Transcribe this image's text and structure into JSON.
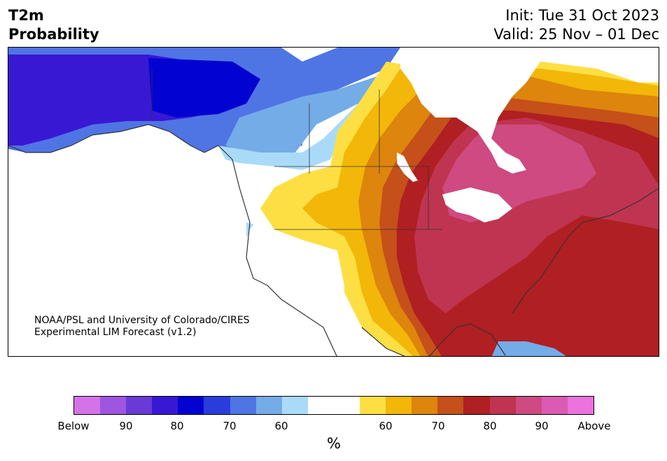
{
  "title": {
    "variable": "T2m",
    "subtitle": "Probability",
    "init": "Init: Tue 31 Oct 2023",
    "valid": "Valid: 25 Nov – 01 Dec"
  },
  "credit": {
    "line1": "NOAA/PSL and University of Colorado/CIRES",
    "line2": "Experimental LIM Forecast (v1.2)"
  },
  "colorbar": {
    "colors": [
      "#d473e8",
      "#9e55e0",
      "#6a3ad6",
      "#3918d4",
      "#0303d1",
      "#2a3ddb",
      "#4f74e4",
      "#74ace8",
      "#a9dbf9",
      "#ffffff",
      "#ffffff",
      "#fddf44",
      "#f2b708",
      "#dd850c",
      "#c5501a",
      "#b01f22",
      "#bf3450",
      "#ce4a80",
      "#db5ab2",
      "#ec72de"
    ],
    "labels": [
      "Below",
      "90",
      "80",
      "70",
      "60",
      "60",
      "70",
      "80",
      "90",
      "Above"
    ],
    "unit": "%"
  },
  "regions": {
    "alaska_core": "#3918d4",
    "yukon_blue": "#0303d1",
    "nw_canada_blue": "#2a3ddb",
    "bc_blue": "#4f74e4",
    "bc_lightblue": "#74ace8",
    "pale_blue": "#a9dbf9",
    "plains_yellow": "#fddf44",
    "plains_gold": "#f2b708",
    "orange": "#dd850c",
    "dark_orange": "#c5501a",
    "dark_red": "#b01f22",
    "crimson": "#bf3450",
    "pink": "#ce4a80",
    "ocean": "#ffffff",
    "water_white": "#ffffff"
  }
}
